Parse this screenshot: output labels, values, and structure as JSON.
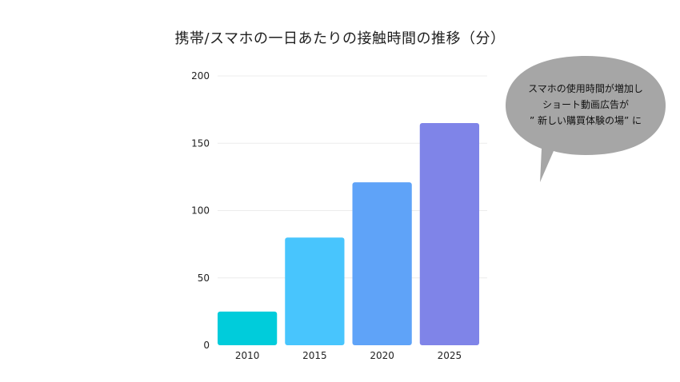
{
  "chart_data": {
    "type": "bar",
    "title": "携帯/スマホの一日あたりの接触時間の推移（分）",
    "xlabel": "",
    "ylabel": "",
    "categories": [
      "2010",
      "2015",
      "2020",
      "2025"
    ],
    "values": [
      25,
      80,
      121,
      165
    ],
    "colors": [
      "#00ccdb",
      "#48c5fd",
      "#5fa3f8",
      "#7f84e8"
    ],
    "ylim": [
      0,
      200
    ],
    "yticks": [
      "0",
      "50",
      "100",
      "150",
      "200"
    ],
    "grid": true,
    "legend": "none"
  },
  "callout": {
    "lines": [
      "スマホの使用時間が増加し",
      "ショート動画広告が",
      "” 新しい購買体験の場” に"
    ],
    "color": "#a6a6a6"
  }
}
